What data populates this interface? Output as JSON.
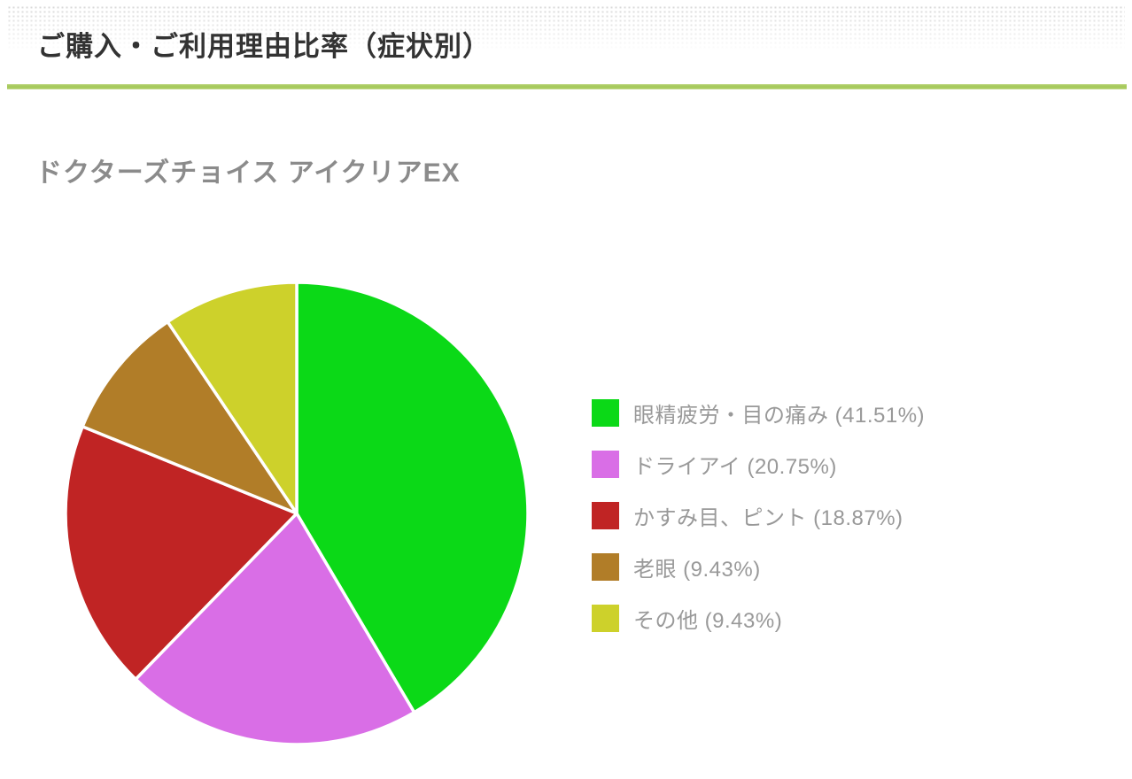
{
  "page": {
    "title": "ご購入・ご利用理由比率（症状別）",
    "subtitle": "ドクターズチョイス アイクリアEX"
  },
  "colors": {
    "accent_line": "#a7ca5d",
    "title_text": "#333333",
    "subtitle_text": "#8b8b8b",
    "legend_text": "#999999",
    "background": "#ffffff"
  },
  "chart_data": {
    "type": "pie",
    "title": "ドクターズチョイス アイクリアEX",
    "start_angle_deg": -90,
    "direction": "clockwise",
    "legend_position": "right",
    "slices": [
      {
        "label": "眼精疲労・目の痛み",
        "value": 41.51,
        "color": "#0bd917",
        "legend": "眼精疲労・目の痛み (41.51%)"
      },
      {
        "label": "ドライアイ",
        "value": 20.75,
        "color": "#d96ee6",
        "legend": "ドライアイ (20.75%)"
      },
      {
        "label": "かすみ目、ピント",
        "value": 18.87,
        "color": "#c02424",
        "legend": "かすみ目、ピント (18.87%)"
      },
      {
        "label": "老眼",
        "value": 9.43,
        "color": "#b17d28",
        "legend": "老眼 (9.43%)"
      },
      {
        "label": "その他",
        "value": 9.43,
        "color": "#cdd12b",
        "legend": "その他 (9.43%)"
      }
    ]
  }
}
